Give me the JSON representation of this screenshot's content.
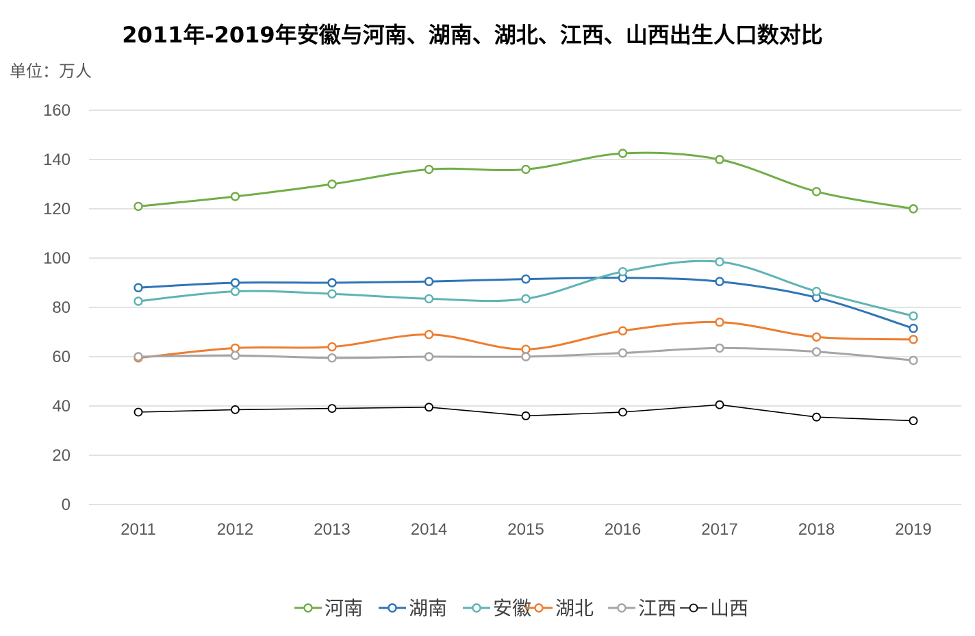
{
  "chart_data": {
    "type": "line",
    "title": "2011年-2019年安徽与河南、湖南、湖北、江西、山西出生人口数对比",
    "unit_label": "单位：万人",
    "categories": [
      "2011",
      "2012",
      "2013",
      "2014",
      "2015",
      "2016",
      "2017",
      "2018",
      "2019"
    ],
    "ylim": [
      0,
      160
    ],
    "yticks": [
      "0",
      "20",
      "40",
      "60",
      "80",
      "100",
      "120",
      "140",
      "160"
    ],
    "grid": true,
    "legend_position": "bottom",
    "smooth": true,
    "series": [
      {
        "name": "河南",
        "color": "#70ad47",
        "width": 3,
        "values": [
          121,
          125,
          130,
          136,
          136,
          142.5,
          140,
          127,
          120
        ]
      },
      {
        "name": "湖南",
        "color": "#2e75b6",
        "width": 3,
        "values": [
          88,
          90,
          90,
          90.5,
          91.5,
          92,
          90.5,
          84,
          71.5
        ]
      },
      {
        "name": "安徽",
        "color": "#5fb3b3",
        "width": 3,
        "values": [
          82.5,
          86.5,
          85.5,
          83.5,
          83.5,
          94.5,
          98.5,
          86.5,
          76.5
        ]
      },
      {
        "name": "湖北",
        "color": "#ed7d31",
        "width": 3,
        "values": [
          59.5,
          63.5,
          64,
          69,
          63,
          70.5,
          74,
          68,
          67
        ]
      },
      {
        "name": "江西",
        "color": "#a5a5a5",
        "width": 3,
        "values": [
          60,
          60.5,
          59.5,
          60,
          60,
          61.5,
          63.5,
          62,
          58.5
        ]
      },
      {
        "name": "山西",
        "color": "#000000",
        "width": 1.6,
        "values": [
          37.5,
          38.5,
          39,
          39.5,
          36,
          37.5,
          40.5,
          35.5,
          34
        ]
      }
    ]
  }
}
